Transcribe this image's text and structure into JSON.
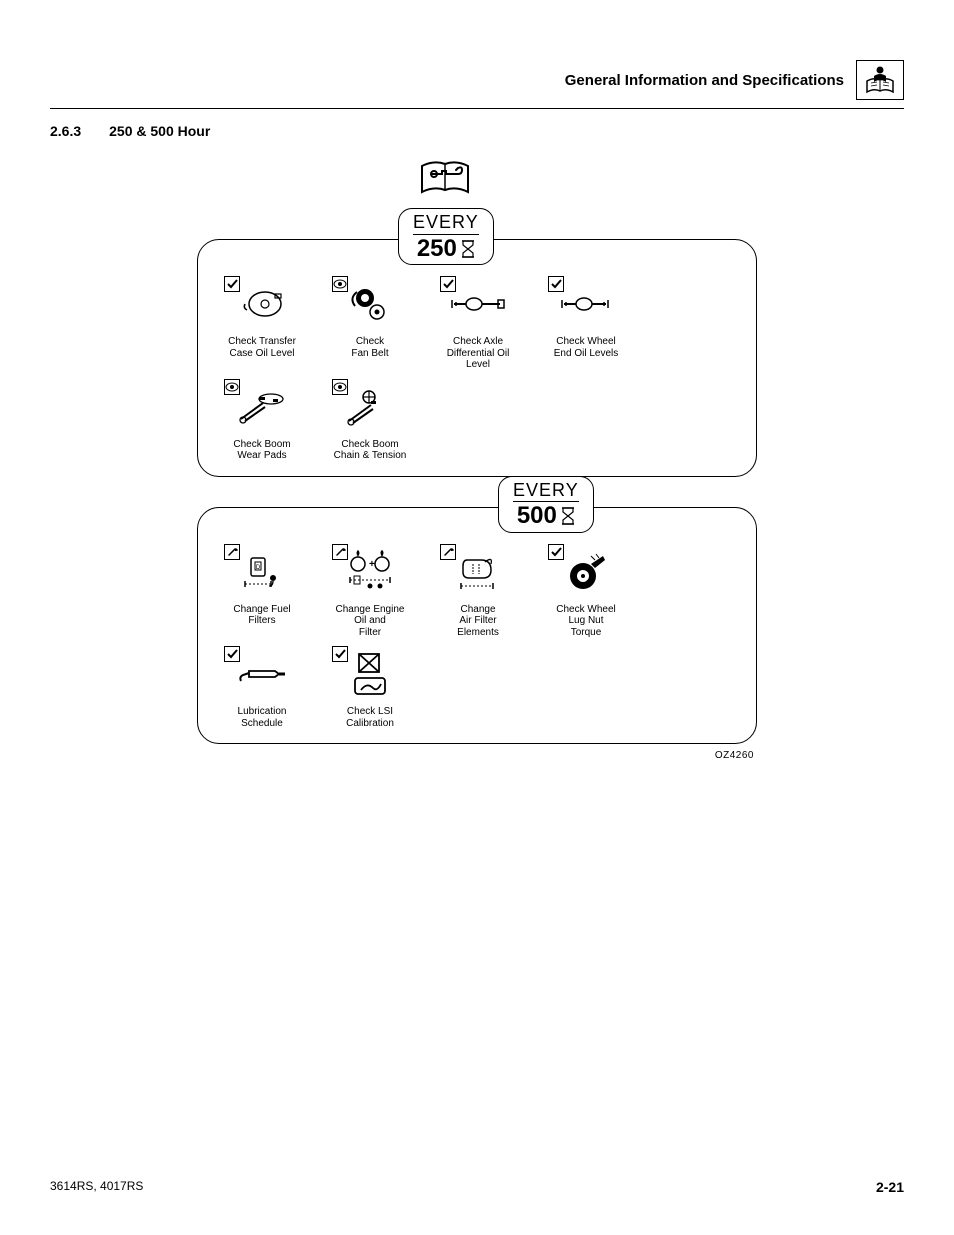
{
  "header": {
    "title": "General Information and Specifications"
  },
  "section": {
    "number": "2.6.3",
    "title": "250 & 500 Hour"
  },
  "interval250": {
    "every": "EVERY",
    "number": "250",
    "items": [
      {
        "label": "Check Transfer\nCase Oil Level",
        "badge": "check"
      },
      {
        "label": "Check\nFan Belt",
        "badge": "eye"
      },
      {
        "label": "Check Axle\nDifferential Oil\nLevel",
        "badge": "check"
      },
      {
        "label": "Check Wheel\nEnd Oil Levels",
        "badge": "check"
      },
      {
        "label": "Check Boom\nWear Pads",
        "badge": "eye"
      },
      {
        "label": "Check Boom\nChain & Tension",
        "badge": "eye"
      }
    ]
  },
  "interval500": {
    "every": "EVERY",
    "number": "500",
    "items": [
      {
        "label": "Change Fuel\nFilters",
        "badge": "wrench"
      },
      {
        "label": "Change Engine\nOil and\nFilter",
        "badge": "wrench"
      },
      {
        "label": "Change\nAir Filter\nElements",
        "badge": "wrench"
      },
      {
        "label": "Check Wheel\nLug Nut\nTorque",
        "badge": "check"
      },
      {
        "label": "Lubrication\nSchedule",
        "badge": "check"
      },
      {
        "label": "Check LSI\nCalibration",
        "badge": "check"
      }
    ]
  },
  "refcode": "OZ4260",
  "footer": {
    "left": "3614RS, 4017RS",
    "right": "2-21"
  }
}
